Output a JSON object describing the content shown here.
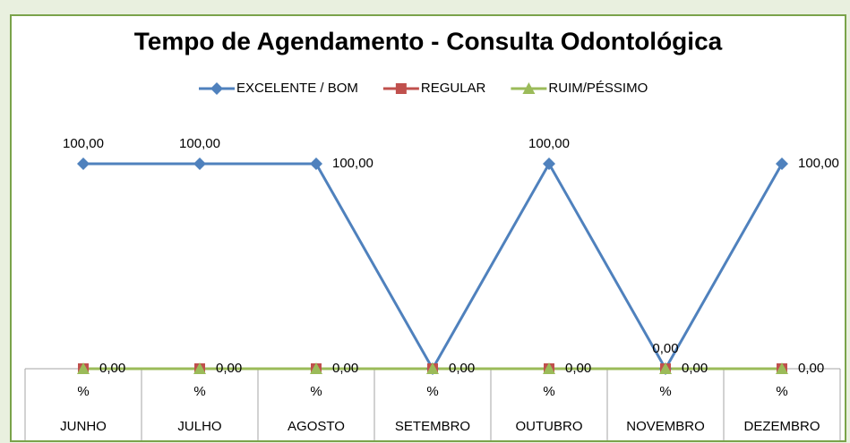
{
  "chart_data": {
    "type": "line",
    "title": "Tempo de Agendamento - Consulta Odontológica",
    "categories": [
      [
        "%",
        "JUNHO"
      ],
      [
        "%",
        "JULHO"
      ],
      [
        "%",
        "AGOSTO"
      ],
      [
        "%",
        "SETEMBRO"
      ],
      [
        "%",
        "OUTUBRO"
      ],
      [
        "%",
        "NOVEMBRO"
      ],
      [
        "%",
        "DEZEMBRO"
      ]
    ],
    "ylim": [
      0,
      100
    ],
    "series": [
      {
        "name": "EXCELENTE / BOM",
        "color": "#4f81bd",
        "marker": "diamond",
        "values": [
          100,
          100,
          100,
          0,
          100,
          0,
          100
        ],
        "value_labels": [
          "100,00",
          "100,00",
          "100,00",
          "0,00",
          "100,00",
          "0,00",
          "100,00"
        ]
      },
      {
        "name": "REGULAR",
        "color": "#c0504d",
        "marker": "square",
        "values": [
          0,
          0,
          0,
          0,
          0,
          0,
          0
        ]
      },
      {
        "name": "RUIM/PÉSSIMO",
        "color": "#9bbb59",
        "marker": "triangle",
        "values": [
          0,
          0,
          0,
          0,
          0,
          0,
          0
        ],
        "value_labels": [
          "0,00",
          "0,00",
          "0,00",
          "0,00",
          "0,00",
          "0,00",
          "0,00"
        ]
      }
    ]
  }
}
